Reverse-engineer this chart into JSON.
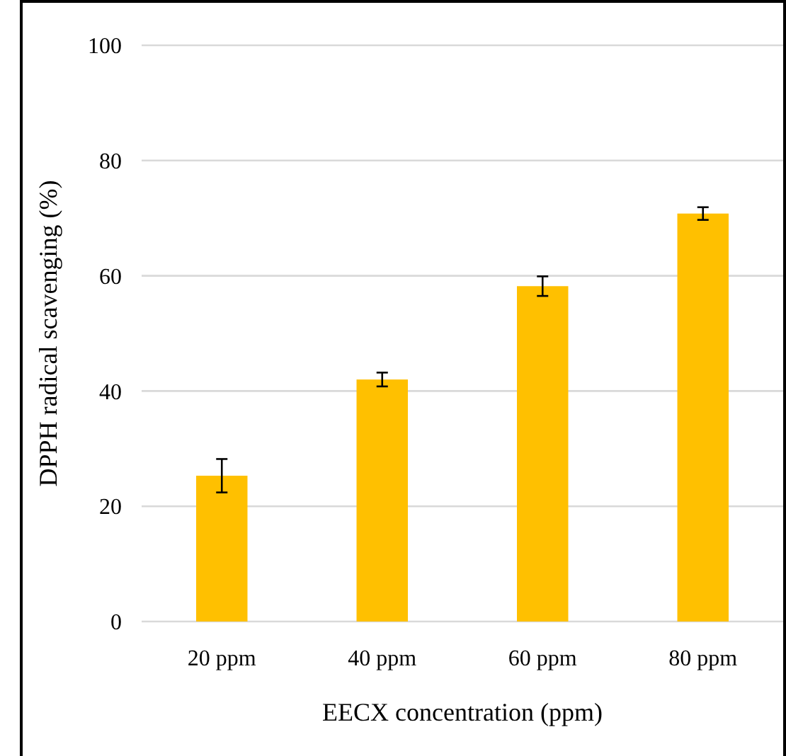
{
  "chart_data": {
    "type": "bar",
    "xlabel": "EECX concentration (ppm)",
    "ylabel": "DPPH radical scavenging (%)",
    "categories": [
      "20 ppm",
      "40 ppm",
      "60 ppm",
      "80 ppm"
    ],
    "values": [
      25.3,
      42,
      58.2,
      70.8
    ],
    "errors": [
      2.9,
      1.2,
      1.7,
      1.1
    ],
    "color": "#ffc000",
    "ylim": [
      0,
      100
    ],
    "yticks": [
      0,
      20,
      40,
      60,
      80,
      100
    ],
    "grid": "y"
  }
}
